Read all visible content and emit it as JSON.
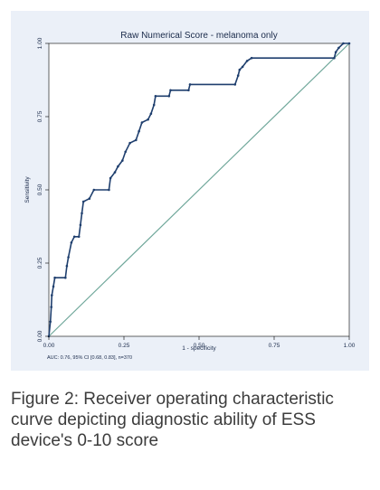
{
  "chart_data": {
    "type": "line",
    "title": "Raw Numerical Score - melanoma only",
    "xlabel": "1 - specificity",
    "ylabel": "Sensitivity",
    "xlim": [
      0,
      1
    ],
    "ylim": [
      0,
      1
    ],
    "xticks": [
      "0.00",
      "0.25",
      "0.50",
      "0.75",
      "1.00"
    ],
    "yticks": [
      "0.00",
      "0.25",
      "0.50",
      "0.75",
      "1.00"
    ],
    "note": "AUC: 0.76, 95% CI [0.68, 0.83], n=370",
    "grid": false,
    "colors": {
      "roc": "#1f3f6e",
      "reference": "#6fa79a",
      "panel": "#ebf0f8",
      "plot": "#ffffff"
    },
    "series": [
      {
        "values": [
          [
            0.0,
            0.0
          ],
          [
            0.005,
            0.05
          ],
          [
            0.008,
            0.1
          ],
          [
            0.01,
            0.14
          ],
          [
            0.015,
            0.17
          ],
          [
            0.02,
            0.2
          ],
          [
            0.055,
            0.2
          ],
          [
            0.06,
            0.24
          ],
          [
            0.065,
            0.27
          ],
          [
            0.075,
            0.32
          ],
          [
            0.085,
            0.34
          ],
          [
            0.1,
            0.34
          ],
          [
            0.105,
            0.38
          ],
          [
            0.11,
            0.42
          ],
          [
            0.115,
            0.46
          ],
          [
            0.135,
            0.47
          ],
          [
            0.15,
            0.5
          ],
          [
            0.2,
            0.5
          ],
          [
            0.205,
            0.54
          ],
          [
            0.22,
            0.56
          ],
          [
            0.23,
            0.58
          ],
          [
            0.245,
            0.6
          ],
          [
            0.255,
            0.63
          ],
          [
            0.27,
            0.66
          ],
          [
            0.29,
            0.67
          ],
          [
            0.3,
            0.7
          ],
          [
            0.31,
            0.73
          ],
          [
            0.33,
            0.74
          ],
          [
            0.34,
            0.76
          ],
          [
            0.35,
            0.79
          ],
          [
            0.355,
            0.82
          ],
          [
            0.4,
            0.82
          ],
          [
            0.405,
            0.84
          ],
          [
            0.465,
            0.84
          ],
          [
            0.47,
            0.86
          ],
          [
            0.62,
            0.86
          ],
          [
            0.63,
            0.89
          ],
          [
            0.635,
            0.91
          ],
          [
            0.645,
            0.92
          ],
          [
            0.66,
            0.94
          ],
          [
            0.675,
            0.95
          ],
          [
            0.95,
            0.95
          ],
          [
            0.955,
            0.97
          ],
          [
            0.965,
            0.985
          ],
          [
            0.98,
            1.0
          ],
          [
            1.0,
            1.0
          ]
        ]
      },
      {
        "values": [
          [
            0,
            0
          ],
          [
            1,
            1
          ]
        ]
      }
    ]
  },
  "caption": "Figure 2: Receiver operating characteristic curve depicting diagnostic ability of ESS device's 0-10 score"
}
